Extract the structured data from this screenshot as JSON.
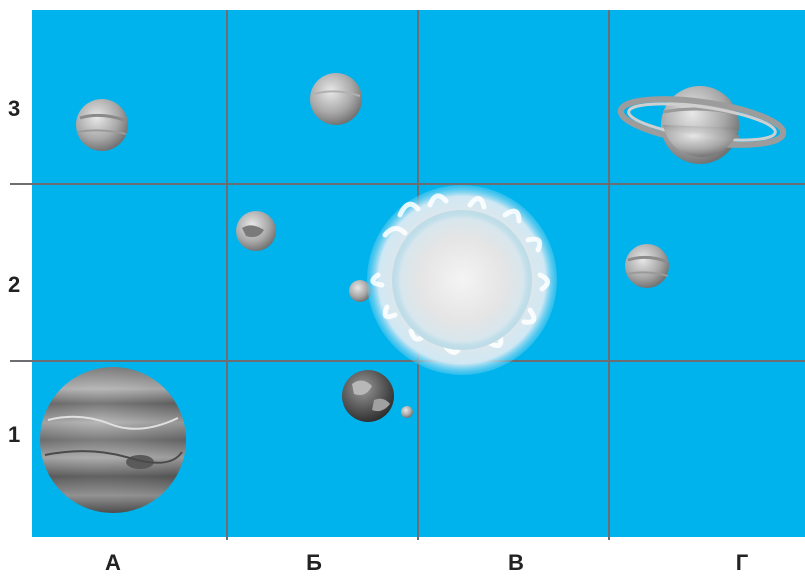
{
  "grid": {
    "columns": [
      "А",
      "Б",
      "В",
      "Г"
    ],
    "rows": [
      "3",
      "2",
      "1"
    ]
  },
  "colors": {
    "background": "#00b3ec",
    "gridline": "#6c6e72",
    "label": "#222222"
  },
  "bodies": [
    {
      "name": "small-planet-icon",
      "cell": "А3"
    },
    {
      "name": "planet-icon",
      "cell": "Б3"
    },
    {
      "name": "saturn-icon",
      "cell": "Г3"
    },
    {
      "name": "mars-like-planet-icon",
      "cell": "Б2"
    },
    {
      "name": "mercury-like-planet-icon",
      "cell": "Б2"
    },
    {
      "name": "sun-icon",
      "cell": "В2"
    },
    {
      "name": "venus-like-planet-icon",
      "cell": "Г2"
    },
    {
      "name": "jupiter-icon",
      "cell": "А1"
    },
    {
      "name": "earth-icon",
      "cell": "Б1"
    },
    {
      "name": "moon-icon",
      "cell": "Б1"
    }
  ]
}
